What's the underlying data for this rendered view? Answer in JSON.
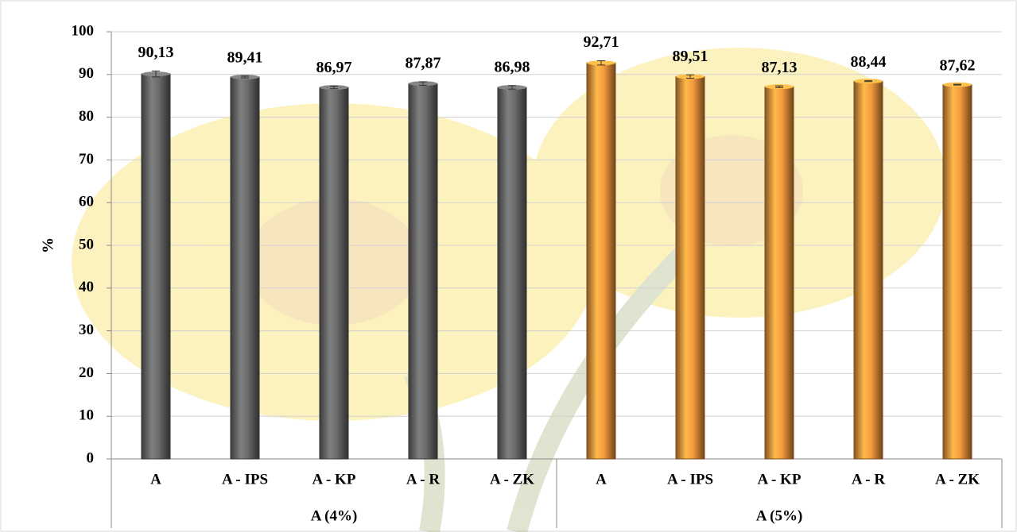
{
  "chart_data": {
    "type": "bar",
    "y_label": "%",
    "series": [
      {
        "name": "A (4%)",
        "color": "#6b6b6b",
        "categories": [
          "A",
          "A - IPS",
          "A - KP",
          "A - R",
          "A - ZK"
        ],
        "values": [
          90.13,
          89.41,
          86.97,
          87.87,
          86.98
        ],
        "value_labels": [
          "90,13",
          "89,41",
          "86,97",
          "87,87",
          "86,98"
        ],
        "errors": [
          0.7,
          0.2,
          0.3,
          0.4,
          0.4
        ]
      },
      {
        "name": "A (5%)",
        "color": "#f39a3c",
        "categories": [
          "A",
          "A - IPS",
          "A - KP",
          "A - R",
          "A - ZK"
        ],
        "values": [
          92.71,
          89.51,
          87.13,
          88.44,
          87.62
        ],
        "value_labels": [
          "92,71",
          "89,51",
          "87,13",
          "88,44",
          "87,62"
        ],
        "errors": [
          0.5,
          0.4,
          0.2,
          0.1,
          0.1
        ]
      }
    ],
    "ylim": [
      0,
      100
    ],
    "yticks": [
      0,
      10,
      20,
      30,
      40,
      50,
      60,
      70,
      80,
      90,
      100
    ],
    "grid": true
  }
}
